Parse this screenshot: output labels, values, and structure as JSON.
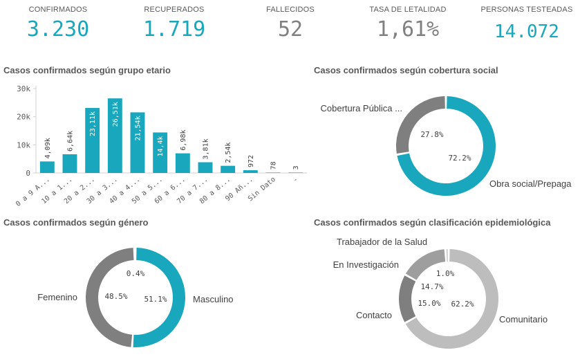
{
  "kpis": [
    {
      "label": "CONFIRMADOS",
      "value": "3.230"
    },
    {
      "label": "RECUPERADOS",
      "value": "1.719"
    },
    {
      "label": "FALLECIDOS",
      "value": "52"
    },
    {
      "label": "TASA DE LETALIDAD",
      "value": "1,61%"
    },
    {
      "label": "PERSONAS TESTEADAS",
      "value": "14.072"
    }
  ],
  "colors": {
    "teal": "#19a7bd",
    "gray": "#808080",
    "dark_gray": "#7f7f7f",
    "mid_gray": "#9e9e9e",
    "light_gray": "#bdbdbd"
  },
  "chart_data": [
    {
      "type": "bar",
      "title": "Casos confirmados según grupo etario",
      "categories": [
        "0 a 9 A...",
        "10 a 1...",
        "20 a 2...",
        "30 a 3...",
        "40 a 4...",
        "50 a 5...",
        "60 a 6...",
        "70 a 7...",
        "80 a 8...",
        "90 Añ...",
        "Sin Dato",
        "-"
      ],
      "values": [
        4090,
        6640,
        23110,
        26510,
        21540,
        14400,
        6980,
        3810,
        2540,
        972,
        78,
        3
      ],
      "data_labels": [
        "4,09k",
        "6,64k",
        "23,11k",
        "26,51k",
        "21,54k",
        "14,4k",
        "6,98k",
        "3,81k",
        "2,54k",
        "972",
        "78",
        "3"
      ],
      "yticks": [
        "0",
        "10k",
        "20k",
        "30k"
      ],
      "ylim": [
        0,
        30000
      ],
      "color": "#19a7bd"
    },
    {
      "type": "pie",
      "title": "Casos confirmados según cobertura social",
      "labels": [
        "Obra social/Prepaga",
        "Cobertura Pública ..."
      ],
      "values": [
        72.2,
        27.8
      ],
      "pct_labels": [
        "72.2%",
        "27.8%"
      ],
      "colors": [
        "#19a7bd",
        "#7f7f7f"
      ]
    },
    {
      "type": "pie",
      "title": "Casos confirmados según género",
      "labels": [
        "Masculino",
        "Femenino",
        ""
      ],
      "values": [
        51.1,
        48.5,
        0.4
      ],
      "pct_labels": [
        "51.1%",
        "48.5%",
        "0.4%"
      ],
      "colors": [
        "#19a7bd",
        "#7f7f7f",
        "#bdbdbd"
      ]
    },
    {
      "type": "pie",
      "title": "Casos confirmados según clasificación epidemiológica",
      "labels": [
        "Comunitario",
        "Contacto",
        "En Investigación",
        "Trabajador de la Salud"
      ],
      "values": [
        62.2,
        15.0,
        14.7,
        1.0
      ],
      "pct_labels": [
        "62.2%",
        "15.0%",
        "14.7%",
        "1.0%"
      ],
      "colors": [
        "#bdbdbd",
        "#7f7f7f",
        "#9e9e9e",
        "#c4c4c4"
      ]
    }
  ]
}
